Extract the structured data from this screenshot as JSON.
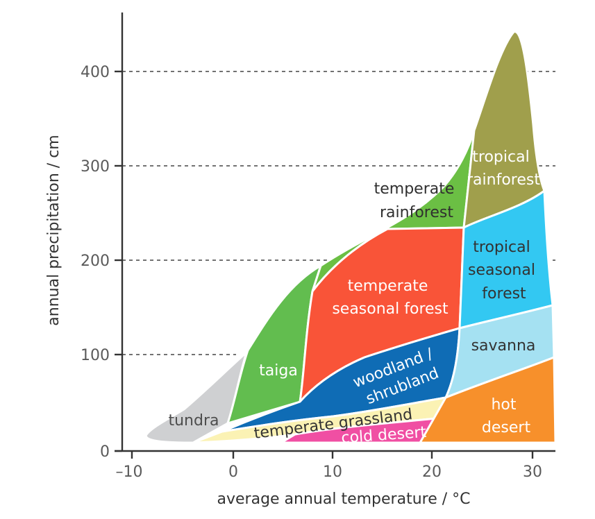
{
  "chart_data": {
    "type": "diagram",
    "xlabel": "average annual temperature / °C",
    "ylabel": "annual precipitation / cm",
    "xlim": [
      -12,
      32
    ],
    "ylim": [
      0,
      460
    ],
    "x_ticks": [
      "–10",
      "0",
      "10",
      "20",
      "30"
    ],
    "y_ticks": [
      "0",
      "100",
      "200",
      "300",
      "400"
    ],
    "grid": "dashed lines at 100, 200, 300, 400",
    "biomes": [
      {
        "id": "tundra",
        "lines": [
          "tundra"
        ],
        "color": "#cfd0d2",
        "text_color": "#4d4d4d",
        "temp_range": [
          -9,
          1
        ],
        "precip_range": [
          10,
          100
        ]
      },
      {
        "id": "taiga",
        "lines": [
          "taiga"
        ],
        "color": "#62bd4f",
        "text_color": "#ffffff",
        "temp_range": [
          -1,
          8
        ],
        "precip_range": [
          28,
          195
        ]
      },
      {
        "id": "temperate-rainforest",
        "lines": [
          "temperate",
          "rainforest"
        ],
        "color": "#6bbf44",
        "text_color": "#2f2f2f",
        "temp_range": [
          8,
          24
        ],
        "precip_range": [
          180,
          335
        ]
      },
      {
        "id": "temperate-seasonal-forest",
        "lines": [
          "temperate",
          "seasonal forest"
        ],
        "color": "#f95438",
        "text_color": "#ffffff",
        "temp_range": [
          6,
          22
        ],
        "precip_range": [
          50,
          235
        ]
      },
      {
        "id": "woodland-shrubland",
        "lines": [
          "woodland /",
          "shrubland"
        ],
        "color": "#0f6cb5",
        "text_color": "#ffffff",
        "temp_range": [
          -1,
          22
        ],
        "precip_range": [
          25,
          128
        ]
      },
      {
        "id": "temperate-grassland",
        "lines": [
          "temperate grassland"
        ],
        "color": "#fbf2b4",
        "text_color": "#333333",
        "temp_range": [
          -4,
          22
        ],
        "precip_range": [
          10,
          50
        ]
      },
      {
        "id": "cold-desert",
        "lines": [
          "cold desert"
        ],
        "color": "#f04fa3",
        "text_color": "#ffffff",
        "temp_range": [
          5,
          20
        ],
        "precip_range": [
          10,
          30
        ]
      },
      {
        "id": "tropical-rainforest",
        "lines": [
          "tropical",
          "rainforest"
        ],
        "color": "#a09f4c",
        "text_color": "#ffffff",
        "temp_range": [
          22,
          30
        ],
        "precip_range": [
          230,
          442
        ]
      },
      {
        "id": "tropical-seasonal-forest",
        "lines": [
          "tropical",
          "seasonal",
          "forest"
        ],
        "color": "#33c8f2",
        "text_color": "#333333",
        "temp_range": [
          22,
          30
        ],
        "precip_range": [
          130,
          275
        ]
      },
      {
        "id": "savanna",
        "lines": [
          "savanna"
        ],
        "color": "#a5e1f2",
        "text_color": "#333333",
        "temp_range": [
          22,
          31
        ],
        "precip_range": [
          55,
          155
        ]
      },
      {
        "id": "hot-desert",
        "lines": [
          "hot",
          "desert"
        ],
        "color": "#f7902b",
        "text_color": "#ffffff",
        "temp_range": [
          19,
          32
        ],
        "precip_range": [
          10,
          100
        ]
      }
    ]
  }
}
